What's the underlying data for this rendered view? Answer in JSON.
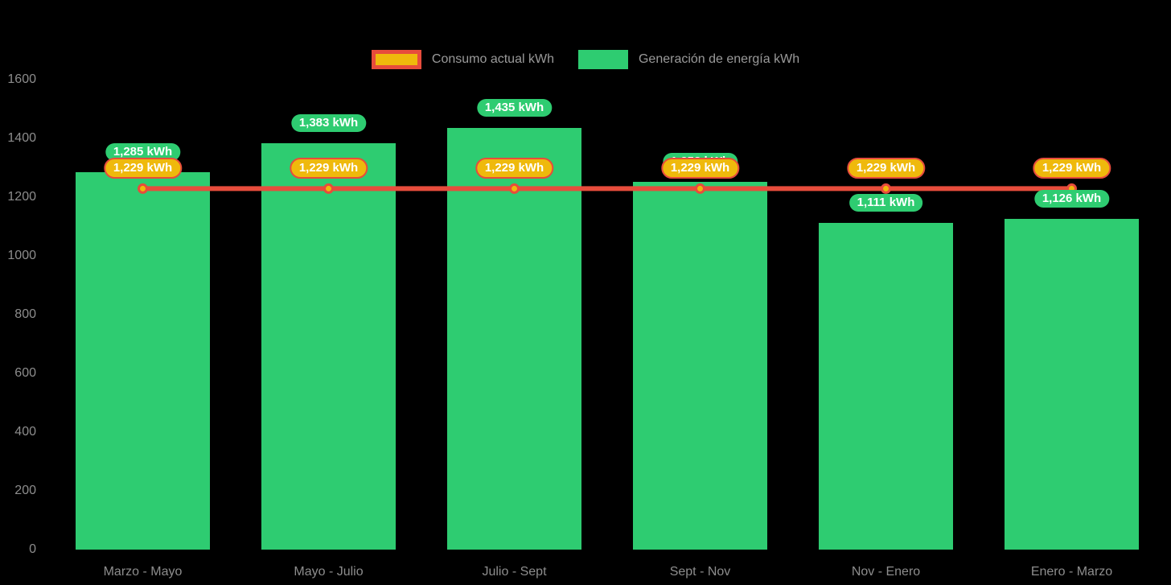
{
  "colors": {
    "background": "#000000",
    "axis_text": "#8d8d8d",
    "legend_text": "#9a9a9a",
    "pill_text": "#ffffff"
  },
  "chart_data": {
    "type": "bar+line combo",
    "title": "",
    "xlabel": "",
    "ylabel": "",
    "categories": [
      "Marzo - Mayo",
      "Mayo - Julio",
      "Julio - Sept",
      "Sept - Nov",
      "Nov - Enero",
      "Enero - Marzo"
    ],
    "series": [
      {
        "name": "Consumo actual kWh",
        "type": "line",
        "color": "#e74c3c",
        "marker_color": "#efb90c",
        "values": [
          1229,
          1229,
          1229,
          1229,
          1229,
          1229
        ],
        "labels": [
          "1,229 kWh",
          "1,229 kWh",
          "1,229 kWh",
          "1,229 kWh",
          "1,229 kWh",
          "1,229 kWh"
        ]
      },
      {
        "name": "Generación de energía kWh",
        "type": "bar",
        "color": "#2ecc71",
        "values": [
          1285,
          1383,
          1435,
          1253,
          1111,
          1126
        ],
        "labels": [
          "1,285 kWh",
          "1,383 kWh",
          "1,435 kWh",
          "1,253 kWh",
          "1,111 kWh",
          "1,126 kWh"
        ]
      }
    ],
    "ylim": [
      0,
      1600
    ],
    "yticks": [
      0,
      200,
      400,
      600,
      800,
      1000,
      1200,
      1400,
      1600
    ],
    "ytick_labels": [
      "0",
      "200",
      "400",
      "600",
      "800",
      "1000",
      "1200",
      "1400",
      "1600"
    ],
    "grid": false,
    "legend_position": "top-center"
  }
}
